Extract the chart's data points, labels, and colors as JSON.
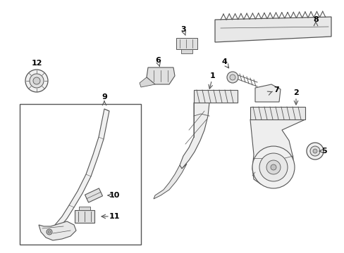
{
  "bg_color": "#ffffff",
  "line_color": "#555555",
  "text_color": "#000000",
  "figsize": [
    4.89,
    3.6
  ],
  "dpi": 100
}
